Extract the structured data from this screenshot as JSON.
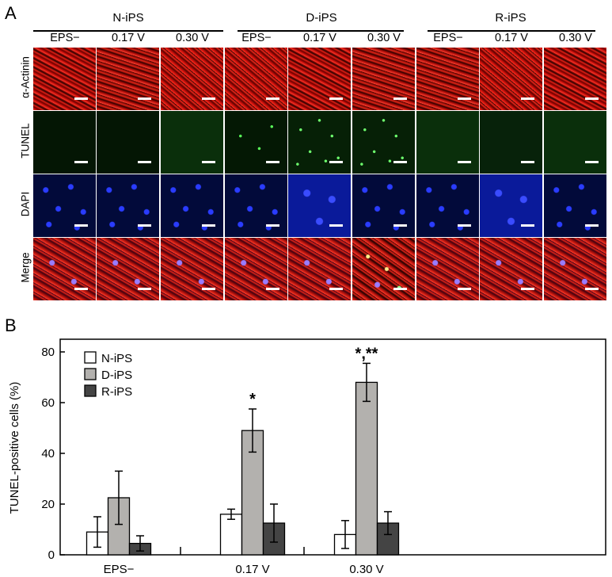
{
  "panel_a": {
    "letter": "A",
    "groups": [
      {
        "name": "N-iPS",
        "columns": [
          "EPS−",
          "0.17 V",
          "0.30 V"
        ]
      },
      {
        "name": "D-iPS",
        "columns": [
          "EPS−",
          "0.17 V",
          "0.30 V"
        ]
      },
      {
        "name": "R-iPS",
        "columns": [
          "EPS−",
          "0.17 V",
          "0.30 V"
        ]
      }
    ],
    "rows": [
      "α-Actinin",
      "TUNEL",
      "DAPI",
      "Merge"
    ]
  },
  "panel_b": {
    "letter": "B"
  },
  "chart_data": {
    "type": "bar",
    "title": "",
    "xlabel": "",
    "ylabel": "TUNEL-positive cells (%)",
    "ylim": [
      0,
      85
    ],
    "yticks": [
      0,
      20,
      40,
      60,
      80
    ],
    "categories": [
      "EPS−",
      "0.17 V",
      "0.30 V"
    ],
    "series": [
      {
        "name": "N-iPS",
        "color": "#ffffff",
        "values": [
          9,
          16,
          8
        ],
        "errors": [
          6,
          2,
          5.5
        ]
      },
      {
        "name": "D-iPS",
        "color": "#b3b1ae",
        "values": [
          22.5,
          49,
          68
        ],
        "errors": [
          10.5,
          8.5,
          7.5
        ]
      },
      {
        "name": "R-iPS",
        "color": "#444444",
        "values": [
          4.5,
          12.5,
          12.5
        ],
        "errors": [
          3,
          7.5,
          4.5
        ]
      }
    ],
    "annotations": [
      {
        "category": "0.17 V",
        "series": "D-iPS",
        "text": "*"
      },
      {
        "category": "0.30 V",
        "series": "D-iPS",
        "text": "*,**"
      }
    ],
    "legend_position": "top-left"
  }
}
